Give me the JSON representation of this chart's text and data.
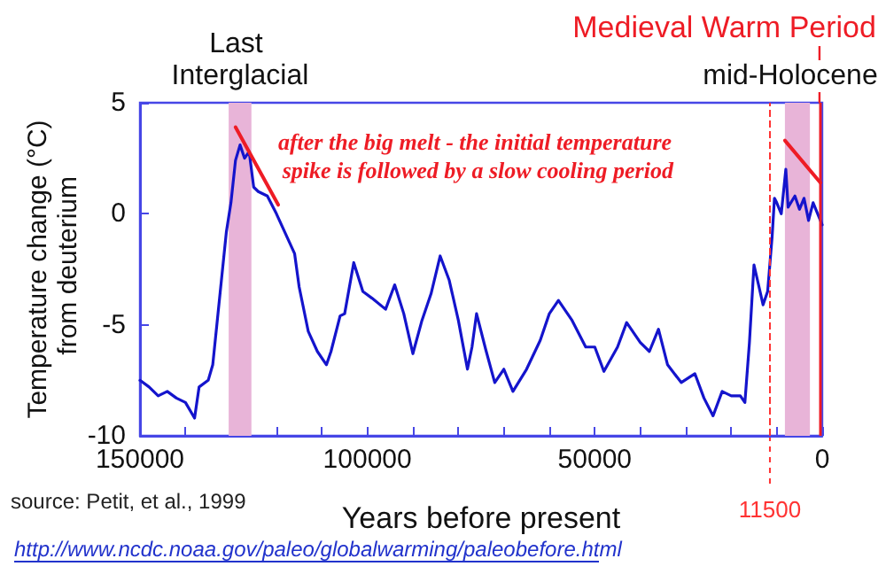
{
  "chart_data": {
    "type": "line",
    "xlabel": "Years before present",
    "ylabel": "Temperature change (°C) from deuterium",
    "x": [
      150000,
      148000,
      146000,
      144000,
      142000,
      140000,
      138000,
      137000,
      135000,
      134000,
      133000,
      132000,
      131000,
      130000,
      129000,
      128000,
      127000,
      126000,
      125000,
      124000,
      122000,
      120000,
      118000,
      116000,
      115000,
      113000,
      111000,
      109000,
      108000,
      106000,
      105000,
      103000,
      101000,
      99000,
      96000,
      94000,
      92000,
      90000,
      88000,
      86000,
      84000,
      82000,
      80000,
      78000,
      77000,
      76000,
      74000,
      72000,
      70000,
      68000,
      65000,
      62000,
      60000,
      58000,
      55000,
      52000,
      50000,
      48000,
      45000,
      43000,
      40000,
      38000,
      36000,
      34000,
      31000,
      28000,
      26000,
      24000,
      22000,
      20000,
      18000,
      17000,
      16000,
      15000,
      13000,
      12000,
      11000,
      10500,
      10000,
      9000,
      8000,
      7500,
      6000,
      5000,
      4000,
      3000,
      2000,
      1000,
      0
    ],
    "series": [
      {
        "color": "#1414cc",
        "values": [
          -7.5,
          -7.8,
          -8.2,
          -8.0,
          -8.3,
          -8.5,
          -9.2,
          -7.8,
          -7.5,
          -6.8,
          -4.8,
          -2.8,
          -0.8,
          0.5,
          2.4,
          3.1,
          2.5,
          2.8,
          1.2,
          1.0,
          0.8,
          0.0,
          -0.9,
          -1.8,
          -3.3,
          -5.3,
          -6.2,
          -6.8,
          -6.2,
          -4.6,
          -4.5,
          -2.2,
          -3.5,
          -3.8,
          -4.3,
          -3.2,
          -4.5,
          -6.3,
          -4.8,
          -3.6,
          -1.9,
          -3.0,
          -4.8,
          -7.0,
          -6.0,
          -4.5,
          -6.1,
          -7.6,
          -7.0,
          -8.0,
          -7.0,
          -5.7,
          -4.5,
          -3.9,
          -4.8,
          -6.0,
          -6.0,
          -7.1,
          -6.0,
          -4.9,
          -5.8,
          -6.2,
          -5.2,
          -6.8,
          -7.6,
          -7.2,
          -8.3,
          -9.1,
          -8.0,
          -8.2,
          -8.2,
          -8.5,
          -5.8,
          -2.3,
          -4.1,
          -3.5,
          -1.0,
          0.7,
          0.5,
          0.0,
          2.0,
          0.3,
          0.8,
          0.2,
          0.7,
          -0.3,
          0.5,
          0.0,
          -0.5
        ]
      },
      {
        "color": "#ee1c25",
        "x": [
          129000,
          119600
        ],
        "values": [
          3.9,
          0.4
        ]
      },
      {
        "color": "#ee1c25",
        "x": [
          8200,
          400
        ],
        "values": [
          3.3,
          1.4
        ]
      }
    ],
    "xlim": [
      150000,
      0
    ],
    "ylim": [
      -10,
      5
    ],
    "xticks": [
      150000,
      {
        "value": 140000,
        "label": null
      },
      {
        "value": 130000,
        "label": null
      },
      {
        "value": 120000,
        "label": null
      },
      {
        "value": 110000,
        "label": null
      },
      100000,
      {
        "value": 90000,
        "label": null
      },
      {
        "value": 80000,
        "label": null
      },
      {
        "value": 70000,
        "label": null
      },
      {
        "value": 60000,
        "label": null
      },
      50000,
      {
        "value": 40000,
        "label": null
      },
      {
        "value": 30000,
        "label": null
      },
      {
        "value": 20000,
        "label": null
      },
      {
        "value": 10000,
        "label": null
      },
      0
    ],
    "yticks": [
      -10,
      -5,
      0,
      5
    ],
    "bands": [
      {
        "axis": "x",
        "from": 130500,
        "to": 125500,
        "label": "Last Interglacial",
        "color": "#e8b4d8"
      },
      {
        "axis": "x",
        "from": 8200,
        "to": 2700,
        "label": "mid-Holocene",
        "color": "#e8b4d8"
      }
    ],
    "ref_lines": [
      {
        "axis": "x",
        "value": 11500,
        "label": "11500",
        "color": "#ff3333",
        "line_style": "dashed"
      },
      {
        "axis": "x",
        "value": 600,
        "label": "Medieval Warm Period",
        "color": "#ee1c25",
        "line_style": "solid"
      }
    ],
    "annotations": [
      "after the big melt - the initial temperature spike is followed by a slow cooling period",
      "source: Petit, et al., 1999",
      "http://www.ncdc.noaa.gov/paleo/globalwarming/paleobefore.html"
    ],
    "grid": false,
    "marker": "none",
    "line_style": "solid"
  }
}
